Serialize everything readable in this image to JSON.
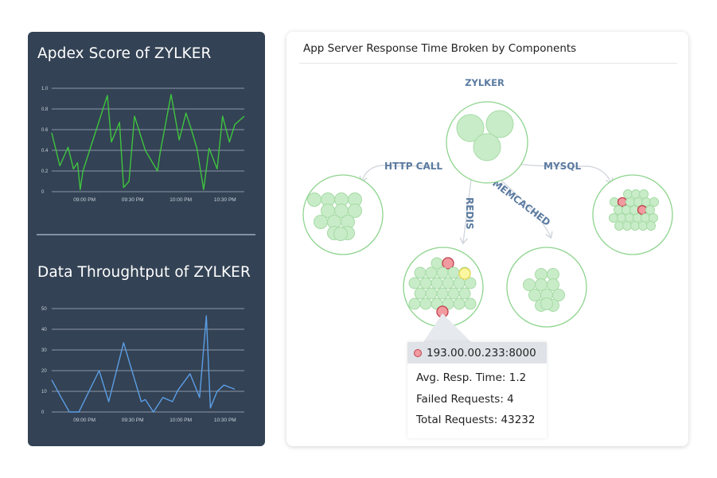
{
  "left_panel": {
    "apdex": {
      "title": "Apdex Score of ZYLKER",
      "chart_data": {
        "type": "line",
        "title": "Apdex Score of ZYLKER",
        "y_ticks": [
          "0",
          "0.2",
          "0.4",
          "0.6",
          "0.8",
          "1.0"
        ],
        "ylim": [
          0,
          1.0
        ],
        "x_ticks": [
          "09:00 PM",
          "09:30 PM",
          "10:00 PM",
          "10:30 PM"
        ],
        "color": "#3fc43f",
        "series": [
          {
            "x": [
              0,
              0.6,
              1.2,
              1.6,
              1.9,
              2.1,
              2.3,
              4.1,
              4.4,
              5.0,
              5.3,
              5.7,
              6.1,
              6.9,
              7.3,
              7.8,
              8.0,
              8.8,
              9.4,
              9.9,
              10.3,
              10.7,
              11.2,
              11.6,
              12.2,
              12.6,
              13.1,
              13.5,
              14.2
            ],
            "y": [
              0.57,
              0.25,
              0.43,
              0.22,
              0.28,
              0.02,
              0.2,
              0.93,
              0.48,
              0.67,
              0.04,
              0.1,
              0.73,
              0.4,
              0.31,
              0.2,
              0.38,
              0.94,
              0.5,
              0.76,
              0.6,
              0.42,
              0.02,
              0.42,
              0.22,
              0.73,
              0.48,
              0.65,
              0.73
            ]
          }
        ]
      }
    },
    "throughput": {
      "title": "Data Throughtput of ZYLKER",
      "chart_data": {
        "type": "line",
        "title": "Data Throughtput of ZYLKER",
        "y_ticks": [
          "0",
          "10",
          "20",
          "30",
          "40",
          "50"
        ],
        "ylim": [
          0,
          50
        ],
        "x_ticks": [
          "09:00 PM",
          "09:30 PM",
          "10:00 PM",
          "10:30 PM"
        ],
        "color": "#5b9ee6",
        "series": [
          {
            "x": [
              0,
              0.7,
              1.3,
              1.6,
              2.0,
              3.5,
              4.2,
              5.3,
              6.6,
              6.9,
              7.5,
              8.2,
              8.9,
              9.3,
              10.2,
              10.9,
              11.4,
              11.7,
              12.2,
              12.7,
              13.5
            ],
            "y": [
              15.5,
              7,
              0,
              0,
              0,
              20,
              5,
              33.5,
              5,
              6,
              0,
              7,
              5,
              10.5,
              18.5,
              7,
              46.5,
              2,
              10,
              13,
              11
            ]
          }
        ]
      }
    }
  },
  "right_panel": {
    "title": "App Server Response Time Broken by Components",
    "nodes": {
      "root": "ZYLKER",
      "edges": [
        "HTTP CALL",
        "MYSQL",
        "REDIS",
        "MEMCACHED"
      ]
    },
    "colors": {
      "node_stroke": "#8ed48e",
      "bubble_fill": "#c8ecc8",
      "bubble_stroke": "#a6dba6",
      "error_fill": "#f19aa0",
      "error_stroke": "#c0404a",
      "warn_fill": "#fbf6a0",
      "warn_stroke": "#e4d34f"
    },
    "tooltip": {
      "host": "193.00.00.233:8000",
      "avg_resp": "Avg. Resp. Time: 1.2",
      "failed": "Failed Requests: 4",
      "total": "Total Requests: 43232"
    }
  }
}
